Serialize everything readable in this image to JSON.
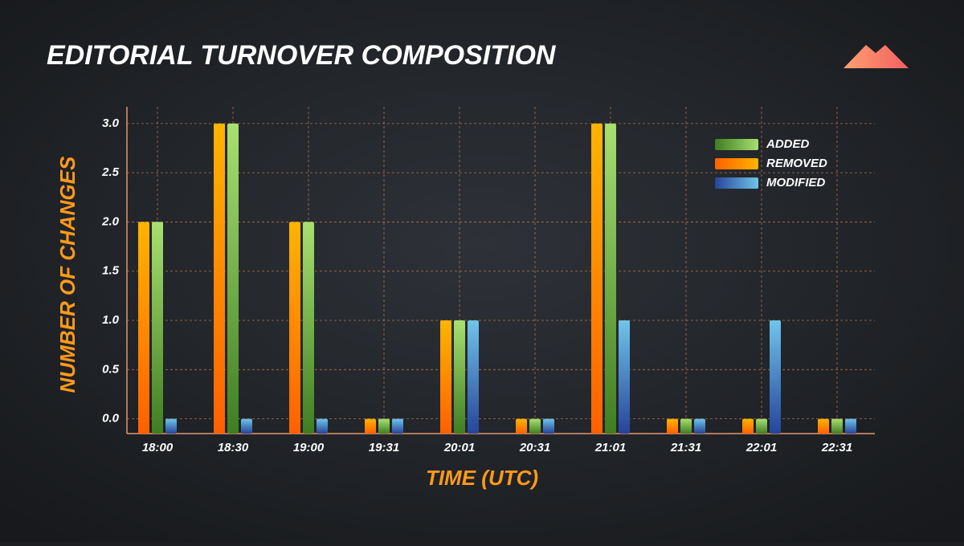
{
  "chart_data": {
    "type": "bar",
    "title": "EDITORIAL TURNOVER COMPOSITION",
    "x_label": "TIME (UTC)",
    "y_label": "NUMBER OF CHANGES",
    "categories": [
      "18:00",
      "18:30",
      "19:00",
      "19:31",
      "20:01",
      "20:31",
      "21:01",
      "21:31",
      "22:01",
      "22:31"
    ],
    "series": [
      {
        "name": "ADDED",
        "color": "#7cc04a",
        "values": [
          2,
          3,
          2,
          0,
          1,
          0,
          3,
          0,
          0,
          0
        ]
      },
      {
        "name": "REMOVED",
        "color": "#ff8c00",
        "values": [
          2,
          3,
          2,
          0,
          1,
          0,
          3,
          0,
          0,
          0
        ]
      },
      {
        "name": "MODIFIED",
        "color": "#4a86c8",
        "values": [
          0,
          0,
          0,
          0,
          1,
          0,
          1,
          0,
          1,
          0
        ]
      }
    ],
    "ylim": [
      -0.15,
      3.17
    ],
    "yticks": [
      {
        "value": 0,
        "label": "0.0"
      },
      {
        "value": 0.5,
        "label": "0.5"
      },
      {
        "value": 1,
        "label": "1.0"
      },
      {
        "value": 1.5,
        "label": "1.5"
      },
      {
        "value": 2,
        "label": "2.0"
      },
      {
        "value": 2.5,
        "label": "2.5"
      },
      {
        "value": 3,
        "label": "3.0"
      }
    ],
    "grid": true,
    "legend_position": "upper right"
  }
}
